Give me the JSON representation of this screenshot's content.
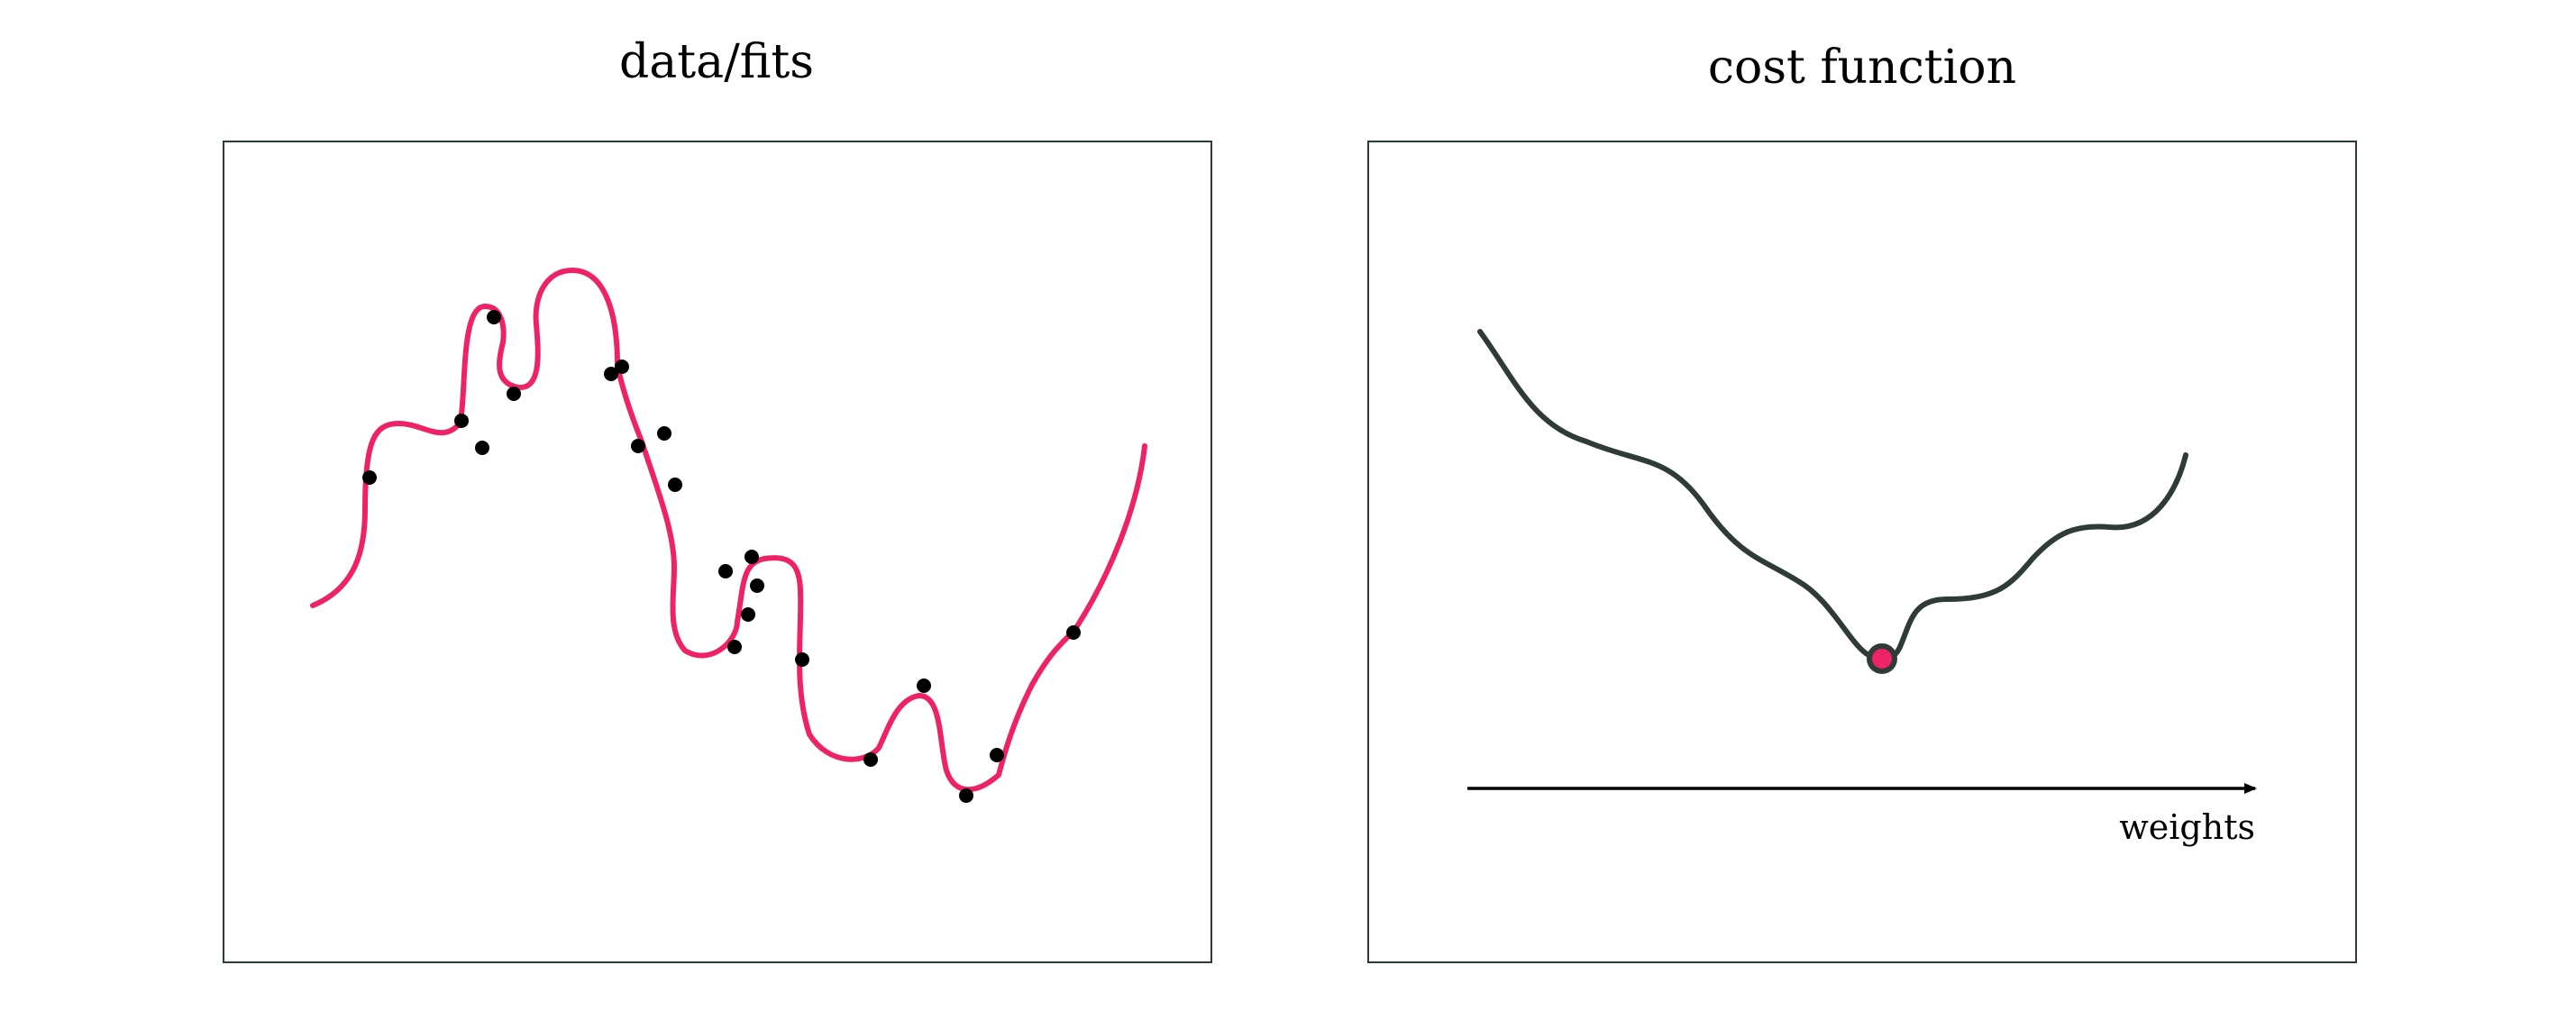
{
  "panels": [
    {
      "id": "data-fits",
      "title": "data/fits",
      "colors": {
        "fit_curve": "#ee2266",
        "data_points": "#000000",
        "frame": "#2b3a3a"
      }
    },
    {
      "id": "cost-function",
      "title": "cost function",
      "axis_label": "weights",
      "colors": {
        "cost_curve": "#2f3b36",
        "minimum_marker_fill": "#ee2266",
        "minimum_marker_stroke": "#2f3b36",
        "axis": "#000000",
        "frame": "#2b3a3a"
      }
    }
  ]
}
